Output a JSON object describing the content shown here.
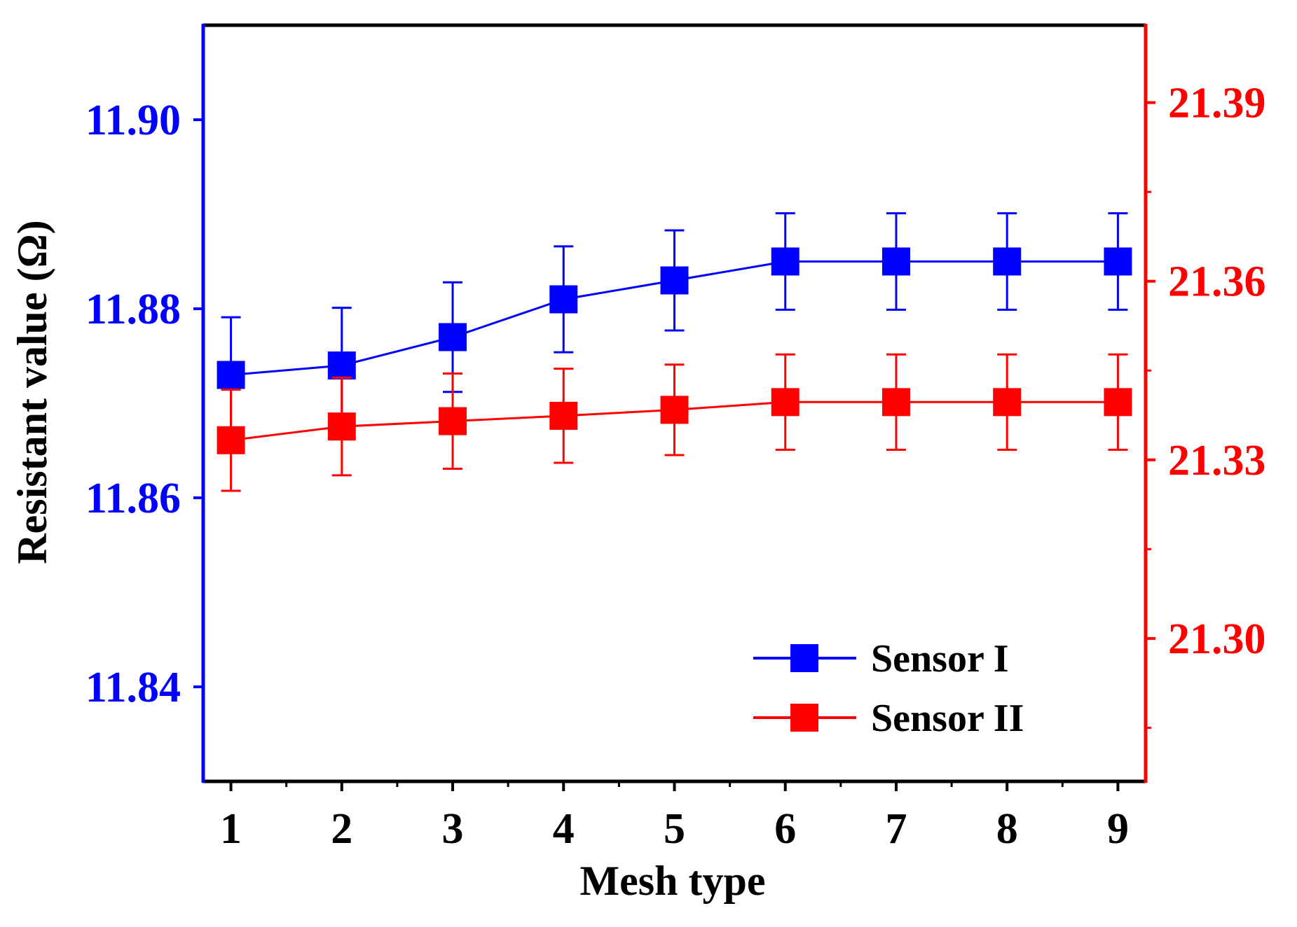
{
  "chart_data": {
    "type": "line",
    "title": "",
    "xlabel": "Mesh type",
    "ylabel": "Resistant value  (Ω)",
    "x": [
      1,
      2,
      3,
      4,
      5,
      6,
      7,
      8,
      9
    ],
    "xlim": [
      0.75,
      9.25
    ],
    "ylim_left": [
      11.83,
      11.91
    ],
    "ylim_right": [
      21.276,
      21.403
    ],
    "left_ticks": [
      "11.84",
      "11.86",
      "11.88",
      "11.90"
    ],
    "right_ticks": [
      "21.30",
      "21.33",
      "21.36",
      "21.39"
    ],
    "x_ticks": [
      "1",
      "2",
      "3",
      "4",
      "5",
      "6",
      "7",
      "8",
      "9"
    ],
    "legend_position": "bottom-right",
    "colors": {
      "left_axis": "#0000ff",
      "right_axis": "#ff0000",
      "frame": "#000000"
    },
    "series": [
      {
        "name": "Sensor I",
        "axis": "left",
        "color": "#0000ff",
        "values": [
          11.873,
          11.874,
          11.877,
          11.881,
          11.883,
          11.885,
          11.885,
          11.885,
          11.885
        ],
        "errors": [
          0.0061,
          0.0061,
          0.0058,
          0.0056,
          0.0053,
          0.0051,
          0.0051,
          0.0051,
          0.0051
        ]
      },
      {
        "name": "Sensor II",
        "axis": "right",
        "color": "#ff0000",
        "values": [
          21.3333,
          21.3356,
          21.3365,
          21.3374,
          21.3384,
          21.3397,
          21.3397,
          21.3397,
          21.3397
        ],
        "errors": [
          0.0085,
          0.0082,
          0.008,
          0.0079,
          0.0076,
          0.008,
          0.008,
          0.008,
          0.008
        ]
      }
    ]
  }
}
